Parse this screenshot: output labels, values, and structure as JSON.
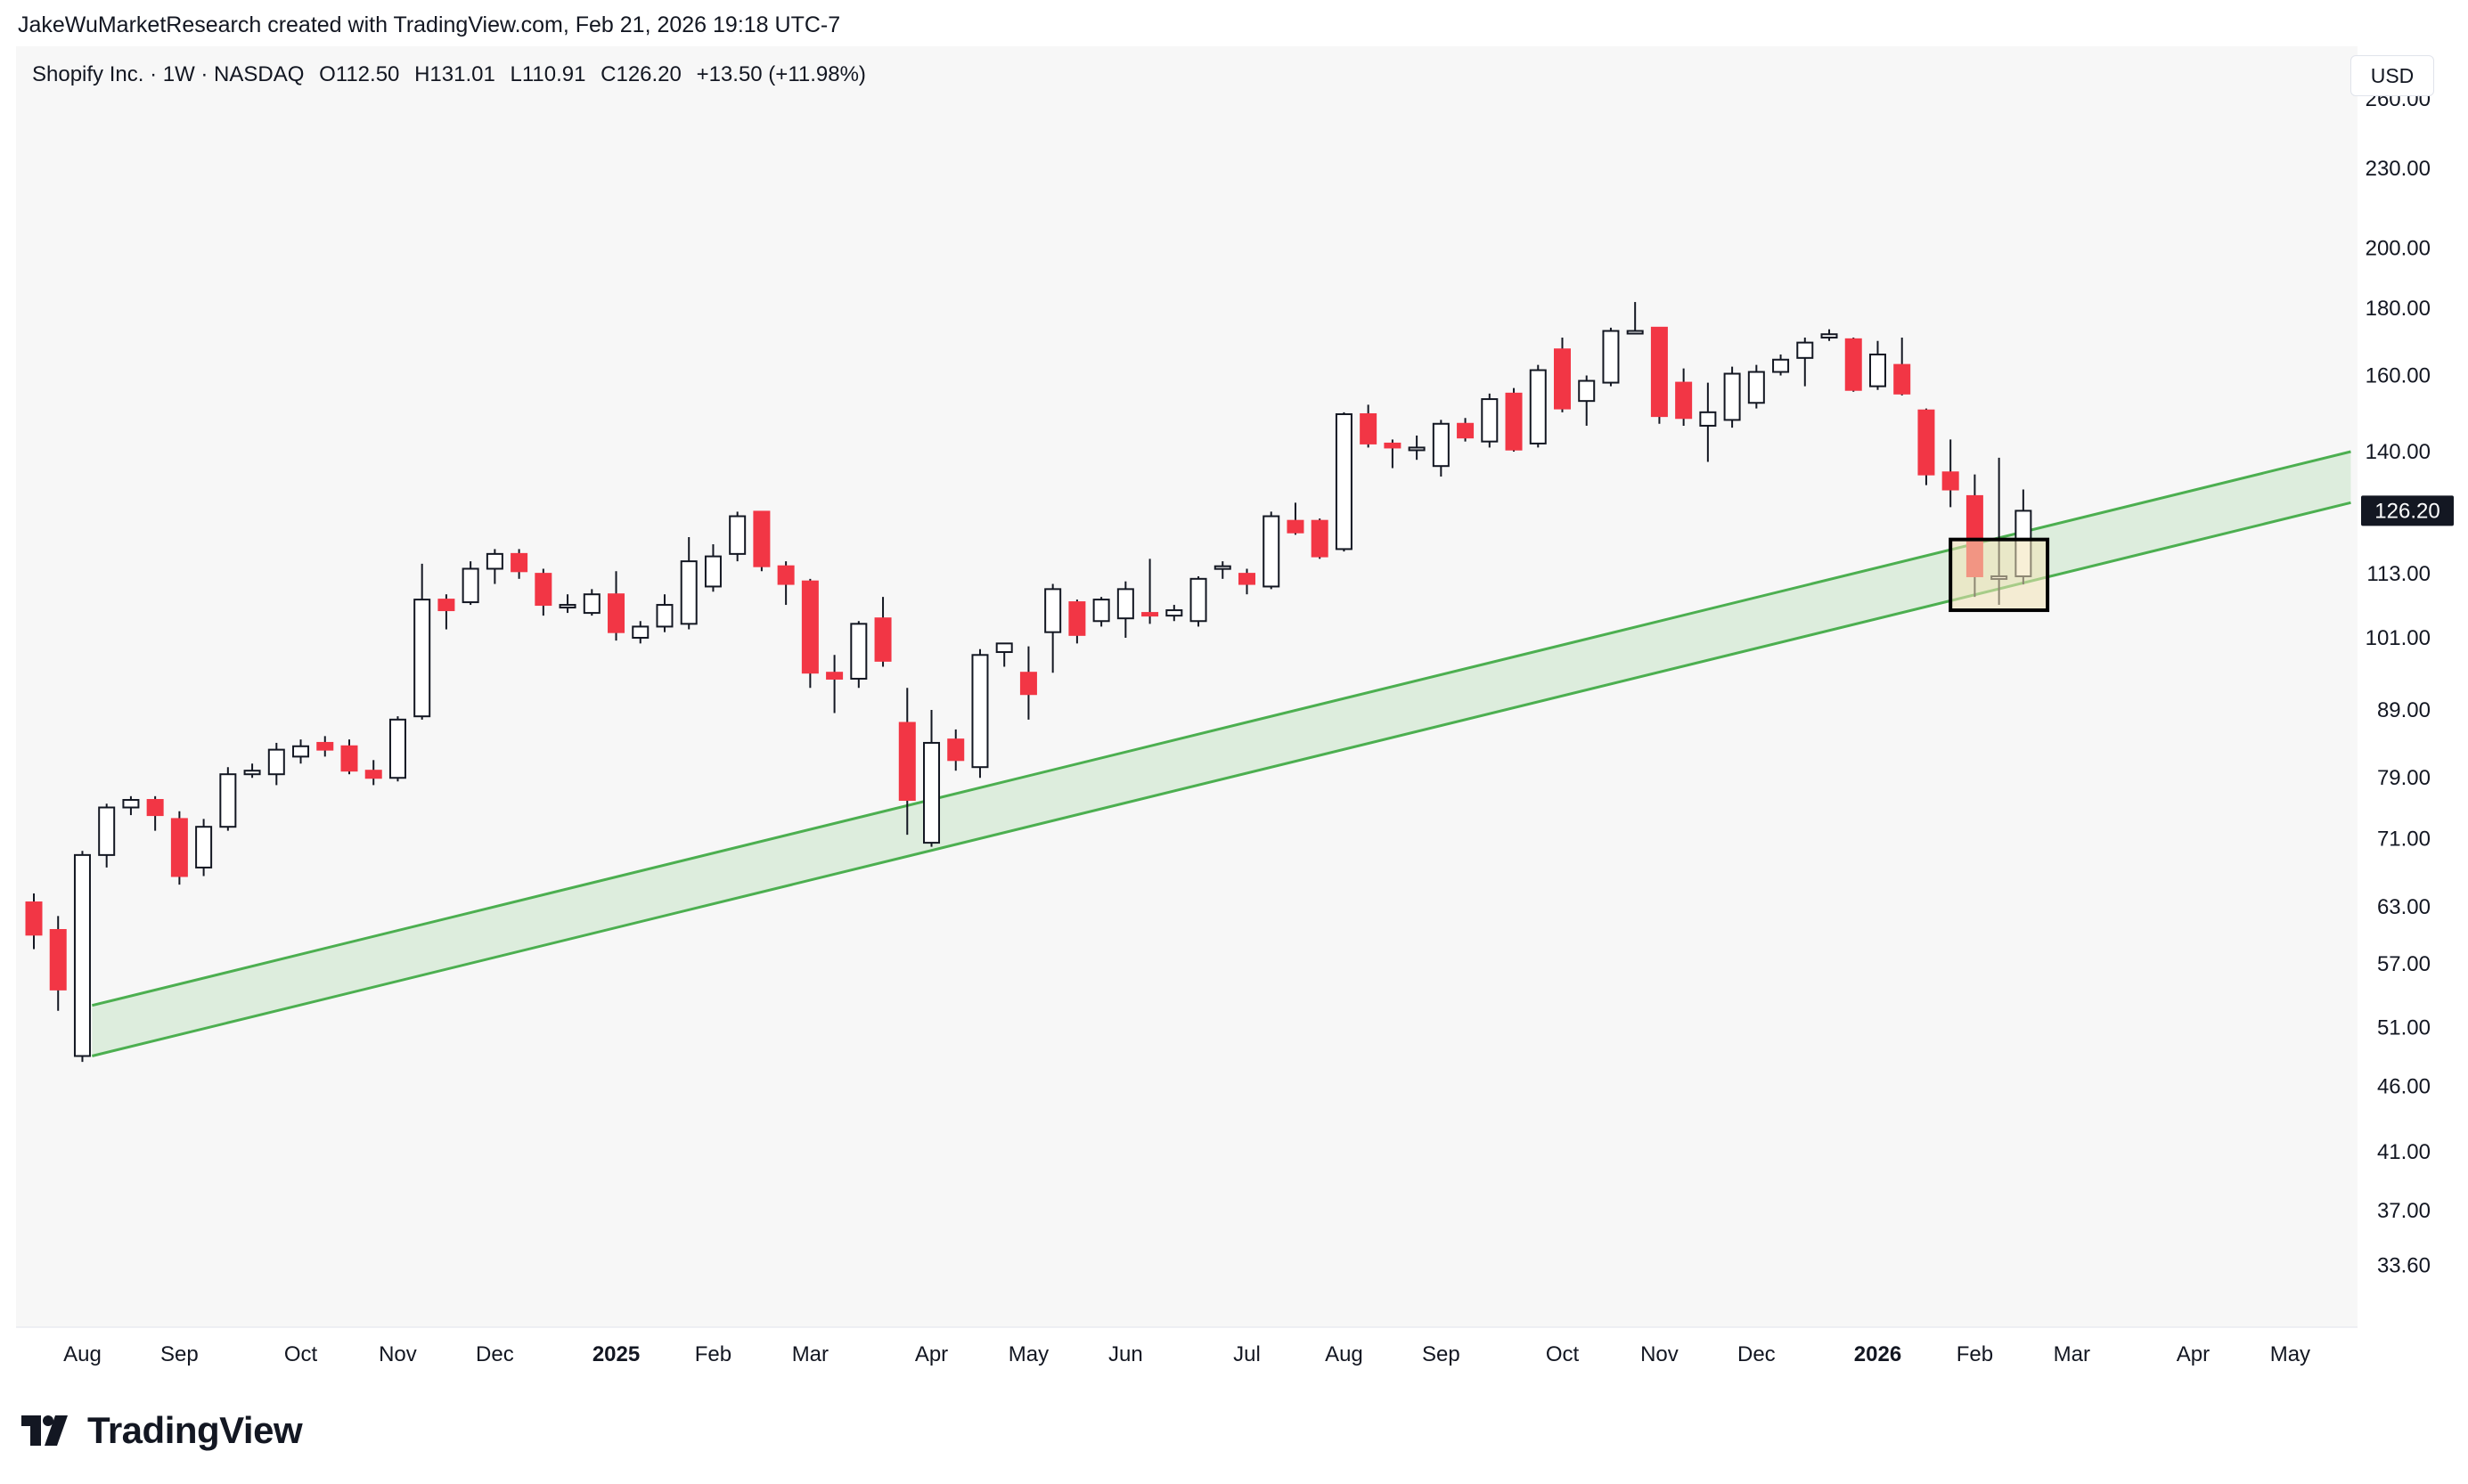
{
  "credit": "JakeWuMarketResearch created with TradingView.com, Feb 21, 2026 19:18 UTC-7",
  "legend": {
    "symbol": "Shopify Inc. · 1W · NASDAQ",
    "open": "O112.50",
    "high": "H131.01",
    "low": "L110.91",
    "close": "C126.20",
    "change": "+13.50 (+11.98%)"
  },
  "currency": "USD",
  "brand": "TradingView",
  "colors": {
    "up": "#ffffff",
    "down": "#f23645",
    "outline": "#131722",
    "channel_line": "#4caf50",
    "channel_fill": "#c8e6c9",
    "highlight_fill": "#f3e3b6",
    "price_tag_bg": "#131722",
    "price_tag_text": "#ffffff"
  },
  "chart_data": {
    "type": "candlestick",
    "title": "Shopify Inc. · 1W · NASDAQ",
    "scale": "log",
    "ylim": [
      31.0,
      285.0
    ],
    "y_ticks": [
      "260.00",
      "230.00",
      "200.00",
      "180.00",
      "160.00",
      "140.00",
      "113.00",
      "101.00",
      "89.00",
      "79.00",
      "71.00",
      "63.00",
      "57.00",
      "51.00",
      "46.00",
      "41.00",
      "37.00",
      "33.60"
    ],
    "last_price": "126.20",
    "x_labels": [
      {
        "label": "Aug",
        "week": 2,
        "bold": false
      },
      {
        "label": "Sep",
        "week": 6,
        "bold": false
      },
      {
        "label": "Oct",
        "week": 11,
        "bold": false
      },
      {
        "label": "Nov",
        "week": 15,
        "bold": false
      },
      {
        "label": "Dec",
        "week": 19,
        "bold": false
      },
      {
        "label": "2025",
        "week": 24,
        "bold": true
      },
      {
        "label": "Feb",
        "week": 28,
        "bold": false
      },
      {
        "label": "Mar",
        "week": 32,
        "bold": false
      },
      {
        "label": "Apr",
        "week": 37,
        "bold": false
      },
      {
        "label": "May",
        "week": 41,
        "bold": false
      },
      {
        "label": "Jun",
        "week": 45,
        "bold": false
      },
      {
        "label": "Jul",
        "week": 50,
        "bold": false
      },
      {
        "label": "Aug",
        "week": 54,
        "bold": false
      },
      {
        "label": "Sep",
        "week": 58,
        "bold": false
      },
      {
        "label": "Oct",
        "week": 63,
        "bold": false
      },
      {
        "label": "Nov",
        "week": 67,
        "bold": false
      },
      {
        "label": "Dec",
        "week": 71,
        "bold": false
      },
      {
        "label": "2026",
        "week": 76,
        "bold": true
      },
      {
        "label": "Feb",
        "week": 80,
        "bold": false
      },
      {
        "label": "Mar",
        "week": 84,
        "bold": false
      },
      {
        "label": "Apr",
        "week": 89,
        "bold": false
      },
      {
        "label": "May",
        "week": 93,
        "bold": false
      }
    ],
    "candles": [
      [
        63.5,
        64.5,
        58.5,
        60.0
      ],
      [
        60.5,
        62.0,
        52.5,
        54.5
      ],
      [
        48.5,
        69.5,
        48.0,
        69.0
      ],
      [
        69.0,
        75.5,
        67.5,
        75.0
      ],
      [
        75.0,
        76.5,
        74.0,
        76.0
      ],
      [
        76.0,
        76.5,
        72.0,
        74.0
      ],
      [
        73.5,
        74.5,
        65.5,
        66.5
      ],
      [
        67.5,
        73.5,
        66.5,
        72.5
      ],
      [
        72.5,
        80.5,
        72.0,
        79.5
      ],
      [
        79.5,
        81.0,
        79.0,
        80.0
      ],
      [
        79.5,
        84.0,
        78.0,
        83.0
      ],
      [
        82.0,
        84.5,
        81.0,
        83.5
      ],
      [
        84.0,
        85.0,
        82.0,
        83.0
      ],
      [
        83.5,
        84.5,
        79.5,
        80.0
      ],
      [
        80.0,
        81.5,
        78.0,
        79.0
      ],
      [
        79.0,
        88.0,
        78.5,
        87.5
      ],
      [
        88.0,
        115.0,
        87.5,
        108.0
      ],
      [
        108.0,
        109.0,
        102.5,
        106.0
      ],
      [
        107.5,
        115.5,
        107.0,
        114.0
      ],
      [
        114.0,
        118.0,
        111.0,
        117.0
      ],
      [
        117.0,
        118.0,
        112.0,
        113.5
      ],
      [
        113.0,
        114.0,
        105.0,
        107.0
      ],
      [
        107.0,
        109.0,
        105.5,
        107.0
      ],
      [
        105.5,
        110.0,
        105.0,
        109.0
      ],
      [
        109.0,
        113.5,
        100.5,
        102.0
      ],
      [
        101.0,
        104.0,
        100.0,
        103.0
      ],
      [
        103.0,
        109.0,
        102.0,
        107.0
      ],
      [
        103.5,
        120.5,
        102.5,
        115.5
      ],
      [
        110.5,
        119.0,
        109.5,
        116.5
      ],
      [
        117.0,
        126.0,
        115.5,
        125.0
      ],
      [
        126.0,
        126.0,
        113.5,
        114.5
      ],
      [
        114.5,
        115.5,
        107.0,
        111.0
      ],
      [
        111.5,
        112.0,
        92.5,
        95.0
      ],
      [
        95.0,
        98.0,
        88.5,
        94.0
      ],
      [
        94.0,
        104.0,
        92.5,
        103.5
      ],
      [
        104.5,
        108.5,
        96.0,
        97.0
      ],
      [
        87.0,
        92.5,
        71.5,
        76.0
      ],
      [
        70.5,
        89.0,
        70.0,
        84.0
      ],
      [
        84.5,
        86.0,
        80.0,
        81.5
      ],
      [
        80.5,
        99.0,
        79.0,
        98.0
      ],
      [
        98.5,
        100.0,
        96.0,
        100.0
      ],
      [
        95.0,
        99.5,
        87.5,
        91.5
      ],
      [
        102.0,
        111.0,
        95.0,
        110.0
      ],
      [
        107.5,
        108.0,
        100.0,
        101.5
      ],
      [
        104.0,
        108.5,
        103.0,
        108.0
      ],
      [
        104.5,
        111.5,
        101.0,
        110.0
      ],
      [
        105.5,
        116.0,
        103.5,
        105.0
      ],
      [
        105.0,
        107.0,
        104.0,
        106.0
      ],
      [
        104.0,
        112.5,
        103.0,
        112.0
      ],
      [
        114.0,
        115.5,
        112.0,
        114.5
      ],
      [
        113.0,
        114.0,
        109.0,
        111.0
      ],
      [
        110.5,
        126.0,
        110.0,
        125.0
      ],
      [
        124.0,
        128.0,
        121.0,
        121.5
      ],
      [
        124.0,
        124.5,
        116.0,
        116.5
      ],
      [
        118.0,
        150.0,
        117.5,
        149.5
      ],
      [
        149.5,
        152.0,
        141.0,
        142.0
      ],
      [
        142.0,
        143.0,
        136.0,
        141.0
      ],
      [
        141.0,
        144.0,
        138.0,
        141.0
      ],
      [
        136.5,
        148.0,
        134.0,
        147.0
      ],
      [
        147.0,
        148.5,
        142.5,
        143.5
      ],
      [
        142.5,
        155.0,
        141.0,
        153.5
      ],
      [
        155.0,
        156.5,
        140.0,
        140.5
      ],
      [
        142.0,
        163.0,
        141.0,
        161.5
      ],
      [
        167.5,
        171.0,
        150.0,
        151.0
      ],
      [
        153.0,
        160.0,
        146.5,
        158.5
      ],
      [
        158.0,
        174.0,
        157.0,
        173.0
      ],
      [
        173.0,
        182.0,
        172.0,
        173.0
      ],
      [
        174.0,
        174.0,
        147.0,
        149.0
      ],
      [
        158.0,
        162.0,
        146.5,
        148.5
      ],
      [
        146.5,
        158.0,
        137.5,
        150.0
      ],
      [
        148.0,
        162.5,
        146.0,
        160.5
      ],
      [
        152.5,
        163.0,
        151.0,
        161.0
      ],
      [
        161.0,
        166.0,
        160.0,
        164.5
      ],
      [
        165.0,
        171.0,
        157.0,
        169.5
      ],
      [
        171.0,
        173.5,
        170.0,
        172.0
      ],
      [
        170.5,
        171.0,
        155.5,
        156.0
      ],
      [
        157.0,
        170.0,
        156.0,
        166.0
      ],
      [
        163.0,
        171.0,
        154.5,
        155.0
      ],
      [
        150.5,
        151.0,
        132.0,
        134.5
      ],
      [
        135.0,
        143.0,
        127.0,
        131.0
      ],
      [
        129.5,
        134.5,
        108.5,
        112.5
      ],
      [
        112.5,
        138.5,
        107.0,
        112.5
      ],
      [
        112.5,
        131.0,
        110.9,
        126.2
      ]
    ],
    "channel": {
      "upper": {
        "start": {
          "week": 2.4,
          "price": 53.0
        },
        "end": {
          "week": 95.5,
          "price": 140.0
        }
      },
      "lower": {
        "start": {
          "week": 2.4,
          "price": 48.5
        },
        "end": {
          "week": 95.5,
          "price": 128.0
        }
      }
    },
    "highlight_zone": {
      "week_start": 79.0,
      "week_end": 83.0,
      "price_low": 106.0,
      "price_high": 120.0
    }
  }
}
